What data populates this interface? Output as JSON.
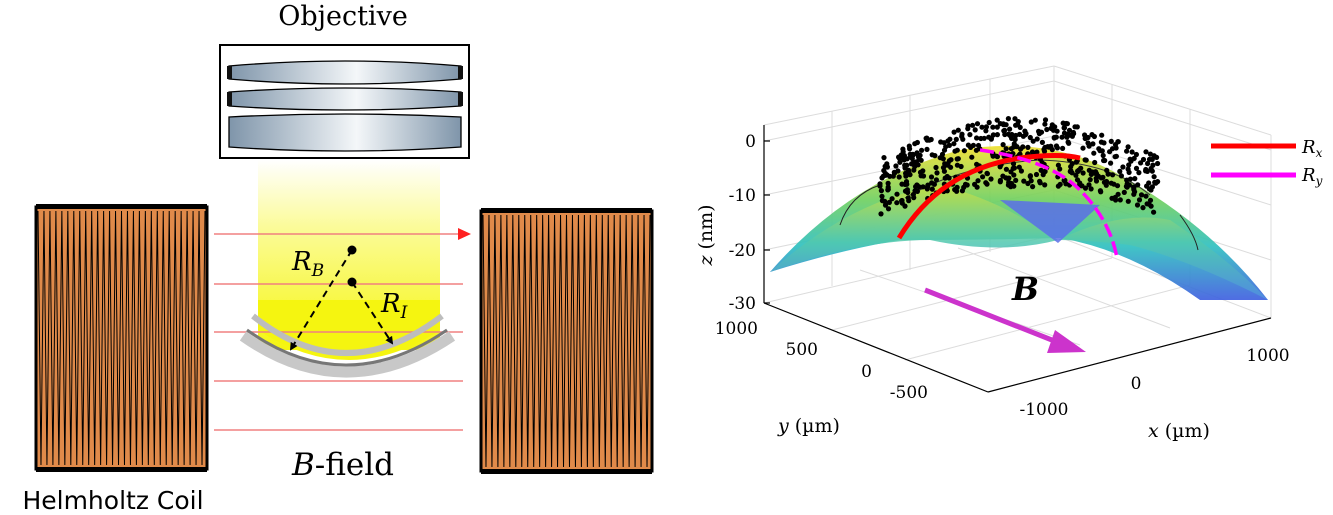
{
  "left_panel": {
    "objective_label": "Objective",
    "coil_label": "Helmholtz Coil",
    "field_label_italic": "B",
    "field_label_rest": "-field",
    "radius_B": {
      "main": "R",
      "sub": "B"
    },
    "radius_I": {
      "main": "R",
      "sub": "I"
    }
  },
  "right_panel": {
    "z_label": "z",
    "z_unit": "(nm)",
    "y_label": "y",
    "y_unit": "(µm)",
    "x_label": "x",
    "x_unit": "(µm)",
    "z_ticks": [
      "0",
      "-10",
      "-20",
      "-30"
    ],
    "y_ticks": [
      "1000",
      "500",
      "0",
      "-500"
    ],
    "x_ticks": [
      "-1000",
      "0",
      "1000"
    ],
    "field_symbol": "B",
    "legend": [
      {
        "main": "R",
        "sub": "x",
        "color": "#ff0000"
      },
      {
        "main": "R",
        "sub": "y",
        "color": "#ff00ff"
      }
    ]
  },
  "colors": {
    "coil_fill": "#e08a4a",
    "field_line": "#f08080",
    "field_arrow": "#ff2020",
    "b_arrow": "#cc33cc"
  }
}
